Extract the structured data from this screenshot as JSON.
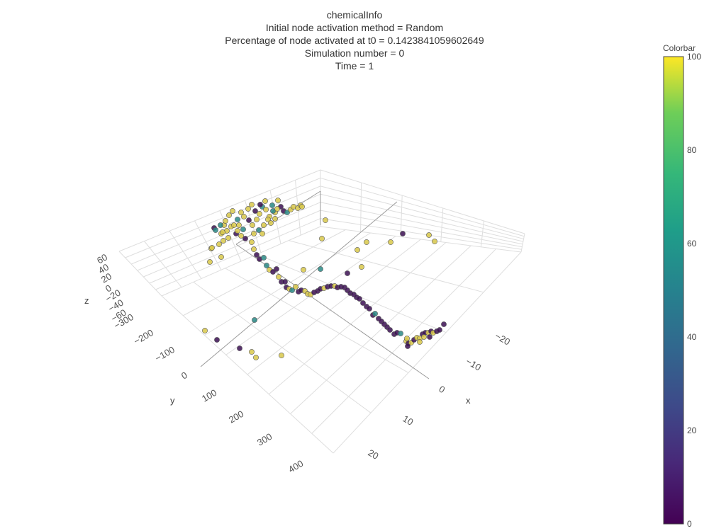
{
  "title_lines": [
    "chemicalInfo",
    "Initial node activation method = Random",
    "Percentage of node activated at t0 = 0.1423841059602649",
    "Simulation number = 0",
    "Time = 1"
  ],
  "colorbar": {
    "title": "Colorbar",
    "ticks": [
      "0",
      "20",
      "40",
      "60",
      "80",
      "100"
    ],
    "colormap": "viridis",
    "range": [
      0,
      100
    ]
  },
  "colors": {
    "low": "#440154",
    "mid": "#21918c",
    "high": "#fde725",
    "point_low": "#3b0f52",
    "point_mid": "#2a8a86",
    "point_high": "#d8c84a"
  },
  "chart_data": {
    "type": "scatter",
    "dimensions": "3d",
    "axes": {
      "x": {
        "label": "x",
        "ticks": [
          "20",
          "10",
          "0",
          "−10",
          "−20"
        ]
      },
      "y": {
        "label": "y",
        "ticks": [
          "400",
          "300",
          "200",
          "100",
          "0",
          "−100",
          "−200",
          "−300"
        ]
      },
      "z": {
        "label": "z",
        "ticks": [
          "60",
          "40",
          "20",
          "0",
          "−20",
          "−40",
          "−60"
        ]
      }
    },
    "color_scale": {
      "name": "Colorbar",
      "range": [
        0,
        100
      ]
    },
    "legend": "colorbar-right",
    "grid": true,
    "approx_point_counts": {
      "value_0": 120,
      "value_50": 25,
      "value_100": 115
    }
  }
}
